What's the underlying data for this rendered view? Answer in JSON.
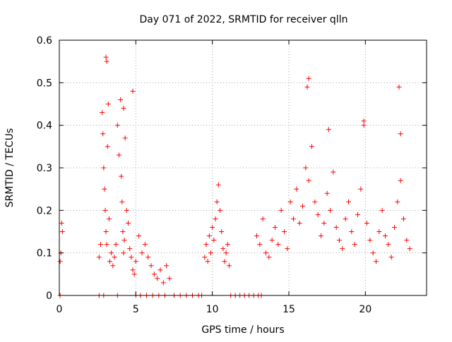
{
  "chart_data": {
    "type": "scatter",
    "title": "Day 071 of 2022, SRMTID for receiver qlln",
    "xlabel": "GPS time / hours",
    "ylabel": "SRMTID / TECUs",
    "xlim": [
      0,
      24
    ],
    "ylim": [
      0,
      0.6
    ],
    "xticks": [
      0,
      5,
      10,
      15,
      20
    ],
    "xtick_labels": [
      "0",
      "5",
      "10",
      "15",
      "20"
    ],
    "yticks": [
      0,
      0.1,
      0.2,
      0.3,
      0.4,
      0.5,
      0.6
    ],
    "ytick_labels": [
      "0",
      "0.1",
      "0.2",
      "0.3",
      "0.4",
      "0.5",
      "0.6"
    ],
    "grid": true,
    "marker": "+",
    "color": "#ff0000",
    "series": [
      {
        "name": "SRMTID",
        "x": [
          0.05,
          0.1,
          0.15,
          0.2,
          2.6,
          2.7,
          2.8,
          2.85,
          2.9,
          2.95,
          3.0,
          3.05,
          3.1,
          3.15,
          3.2,
          3.25,
          3.3,
          3.4,
          3.5,
          3.6,
          3.7,
          3.8,
          3.9,
          4.0,
          4.05,
          4.1,
          4.15,
          4.2,
          4.25,
          4.3,
          4.4,
          4.5,
          4.6,
          4.7,
          4.8,
          4.9,
          5.0,
          5.2,
          5.4,
          5.6,
          5.8,
          6.0,
          6.2,
          6.4,
          6.6,
          6.8,
          7.0,
          7.2,
          9.5,
          9.6,
          9.7,
          9.8,
          9.9,
          10.0,
          10.1,
          10.2,
          10.3,
          10.4,
          10.5,
          10.6,
          10.7,
          10.8,
          10.9,
          11.0,
          11.1,
          12.9,
          13.1,
          13.3,
          13.5,
          13.7,
          13.9,
          14.1,
          14.3,
          14.5,
          14.7,
          14.9,
          15.1,
          15.3,
          15.5,
          15.7,
          15.9,
          16.1,
          16.3,
          16.5,
          16.7,
          16.9,
          17.1,
          17.3,
          17.5,
          17.7,
          17.9,
          18.1,
          18.3,
          18.5,
          18.7,
          18.9,
          19.1,
          19.3,
          19.5,
          19.7,
          19.9,
          20.1,
          20.3,
          20.5,
          20.7,
          20.9,
          21.1,
          21.3,
          21.5,
          21.7,
          21.9,
          22.1,
          22.3,
          22.5,
          22.7,
          22.9,
          3.05,
          3.1,
          4.2,
          4.8,
          16.3,
          16.2,
          17.6,
          19.9,
          22.2,
          22.3,
          0.05,
          2.6,
          2.9,
          3.8,
          5.0,
          5.3,
          5.7,
          6.1,
          6.5,
          6.9,
          7.5,
          7.9,
          8.3,
          8.7,
          9.1,
          9.3,
          11.2,
          11.5,
          11.8,
          12.1,
          12.4,
          12.7,
          13.0,
          13.2
        ],
        "y": [
          0.08,
          0.1,
          0.17,
          0.15,
          0.09,
          0.12,
          0.43,
          0.38,
          0.3,
          0.25,
          0.2,
          0.15,
          0.12,
          0.35,
          0.45,
          0.18,
          0.08,
          0.1,
          0.07,
          0.09,
          0.12,
          0.4,
          0.33,
          0.46,
          0.28,
          0.22,
          0.15,
          0.1,
          0.13,
          0.37,
          0.2,
          0.17,
          0.11,
          0.09,
          0.06,
          0.05,
          0.08,
          0.14,
          0.1,
          0.12,
          0.09,
          0.07,
          0.05,
          0.04,
          0.06,
          0.03,
          0.07,
          0.04,
          0.09,
          0.12,
          0.08,
          0.14,
          0.1,
          0.16,
          0.13,
          0.18,
          0.22,
          0.26,
          0.2,
          0.15,
          0.11,
          0.08,
          0.1,
          0.12,
          0.07,
          0.14,
          0.12,
          0.18,
          0.1,
          0.09,
          0.13,
          0.16,
          0.12,
          0.2,
          0.15,
          0.11,
          0.22,
          0.18,
          0.25,
          0.17,
          0.21,
          0.3,
          0.27,
          0.35,
          0.22,
          0.19,
          0.14,
          0.17,
          0.24,
          0.2,
          0.29,
          0.16,
          0.13,
          0.11,
          0.18,
          0.22,
          0.15,
          0.12,
          0.19,
          0.25,
          0.4,
          0.17,
          0.13,
          0.1,
          0.08,
          0.15,
          0.2,
          0.14,
          0.12,
          0.09,
          0.16,
          0.22,
          0.27,
          0.18,
          0.13,
          0.11,
          0.56,
          0.55,
          0.44,
          0.48,
          0.51,
          0.49,
          0.39,
          0.41,
          0.49,
          0.38,
          0.0,
          0.0,
          0.0,
          0.0,
          0.0,
          0.0,
          0.0,
          0.0,
          0.0,
          0.0,
          0.0,
          0.0,
          0.0,
          0.0,
          0.0,
          0.0,
          0.0,
          0.0,
          0.0,
          0.0,
          0.0,
          0.0,
          0.0,
          0.0
        ]
      }
    ]
  }
}
